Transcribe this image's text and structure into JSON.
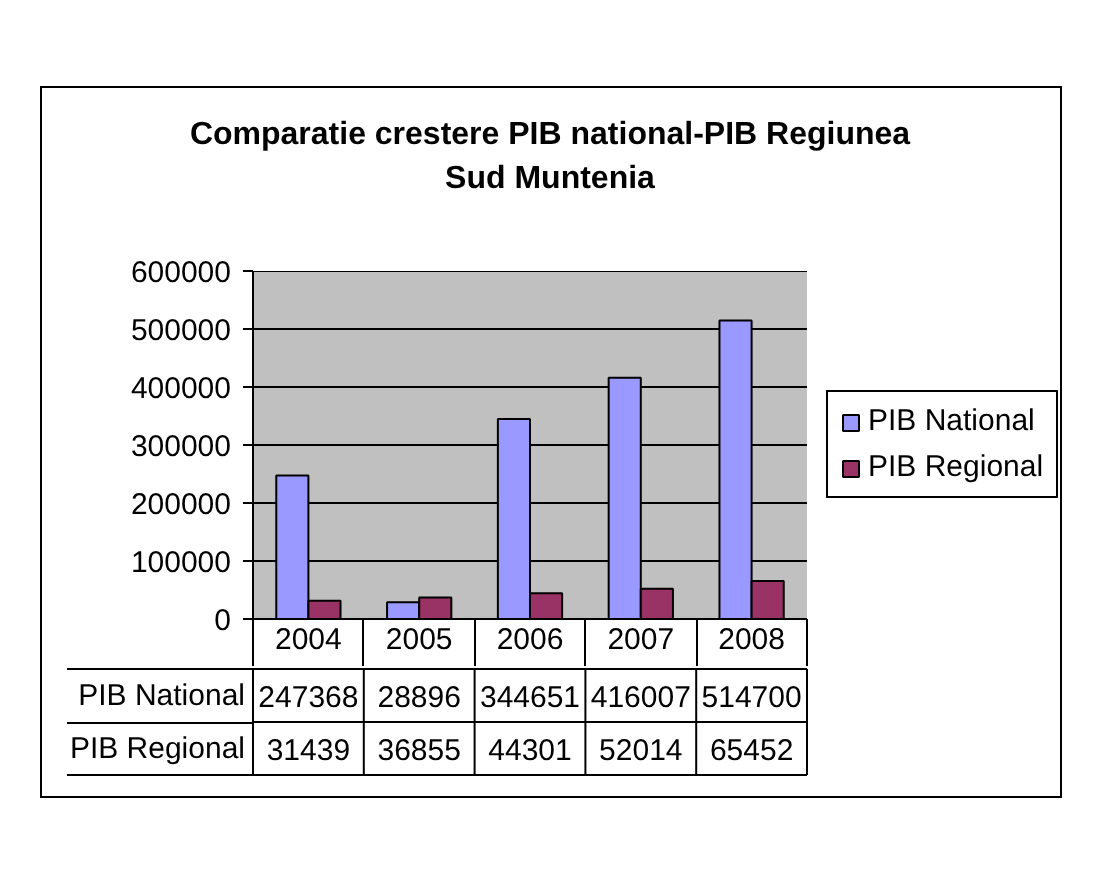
{
  "chart_data": {
    "type": "bar",
    "title": "Comparatie crestere PIB national-PIB Regiunea Sud Muntenia",
    "categories": [
      "2004",
      "2005",
      "2006",
      "2007",
      "2008"
    ],
    "series": [
      {
        "name": "PIB National",
        "color": "#9999ff",
        "values": [
          247368,
          28896,
          344651,
          416007,
          514700
        ]
      },
      {
        "name": "PIB Regional",
        "color": "#993366",
        "values": [
          31439,
          36855,
          44301,
          52014,
          65452
        ]
      }
    ],
    "ylim": [
      0,
      600000
    ],
    "yticks": [
      0,
      100000,
      200000,
      300000,
      400000,
      500000,
      600000
    ],
    "grid": "y",
    "legend": "right",
    "data_labels": true
  }
}
